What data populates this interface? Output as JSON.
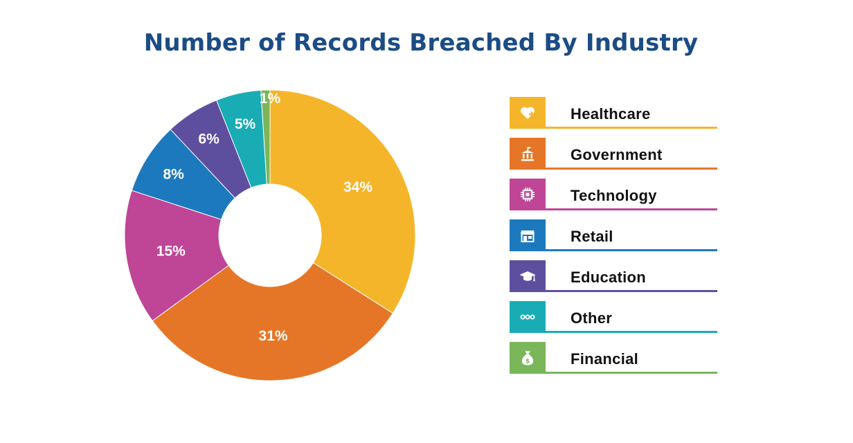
{
  "chart_data": {
    "type": "pie",
    "title": "Number of Records Breached By Industry",
    "categories": [
      "Healthcare",
      "Government",
      "Technology",
      "Retail",
      "Education",
      "Other",
      "Financial"
    ],
    "values": [
      34,
      31,
      15,
      8,
      6,
      5,
      1
    ],
    "value_labels": [
      "34%",
      "31%",
      "15%",
      "8%",
      "6%",
      "5%",
      "1%"
    ],
    "colors": [
      "#f5b52a",
      "#e67627",
      "#bf4597",
      "#1d79bd",
      "#5e4f9e",
      "#19acb5",
      "#7ab65a"
    ],
    "donut": true,
    "legend_position": "right"
  },
  "legend": {
    "items": [
      {
        "label": "Healthcare",
        "icon": "heart-plus-icon"
      },
      {
        "label": "Government",
        "icon": "government-building-icon"
      },
      {
        "label": "Technology",
        "icon": "chip-icon"
      },
      {
        "label": "Retail",
        "icon": "storefront-icon"
      },
      {
        "label": "Education",
        "icon": "graduation-cap-icon"
      },
      {
        "label": "Other",
        "icon": "ellipsis-icon"
      },
      {
        "label": "Financial",
        "icon": "money-bag-icon"
      }
    ]
  }
}
